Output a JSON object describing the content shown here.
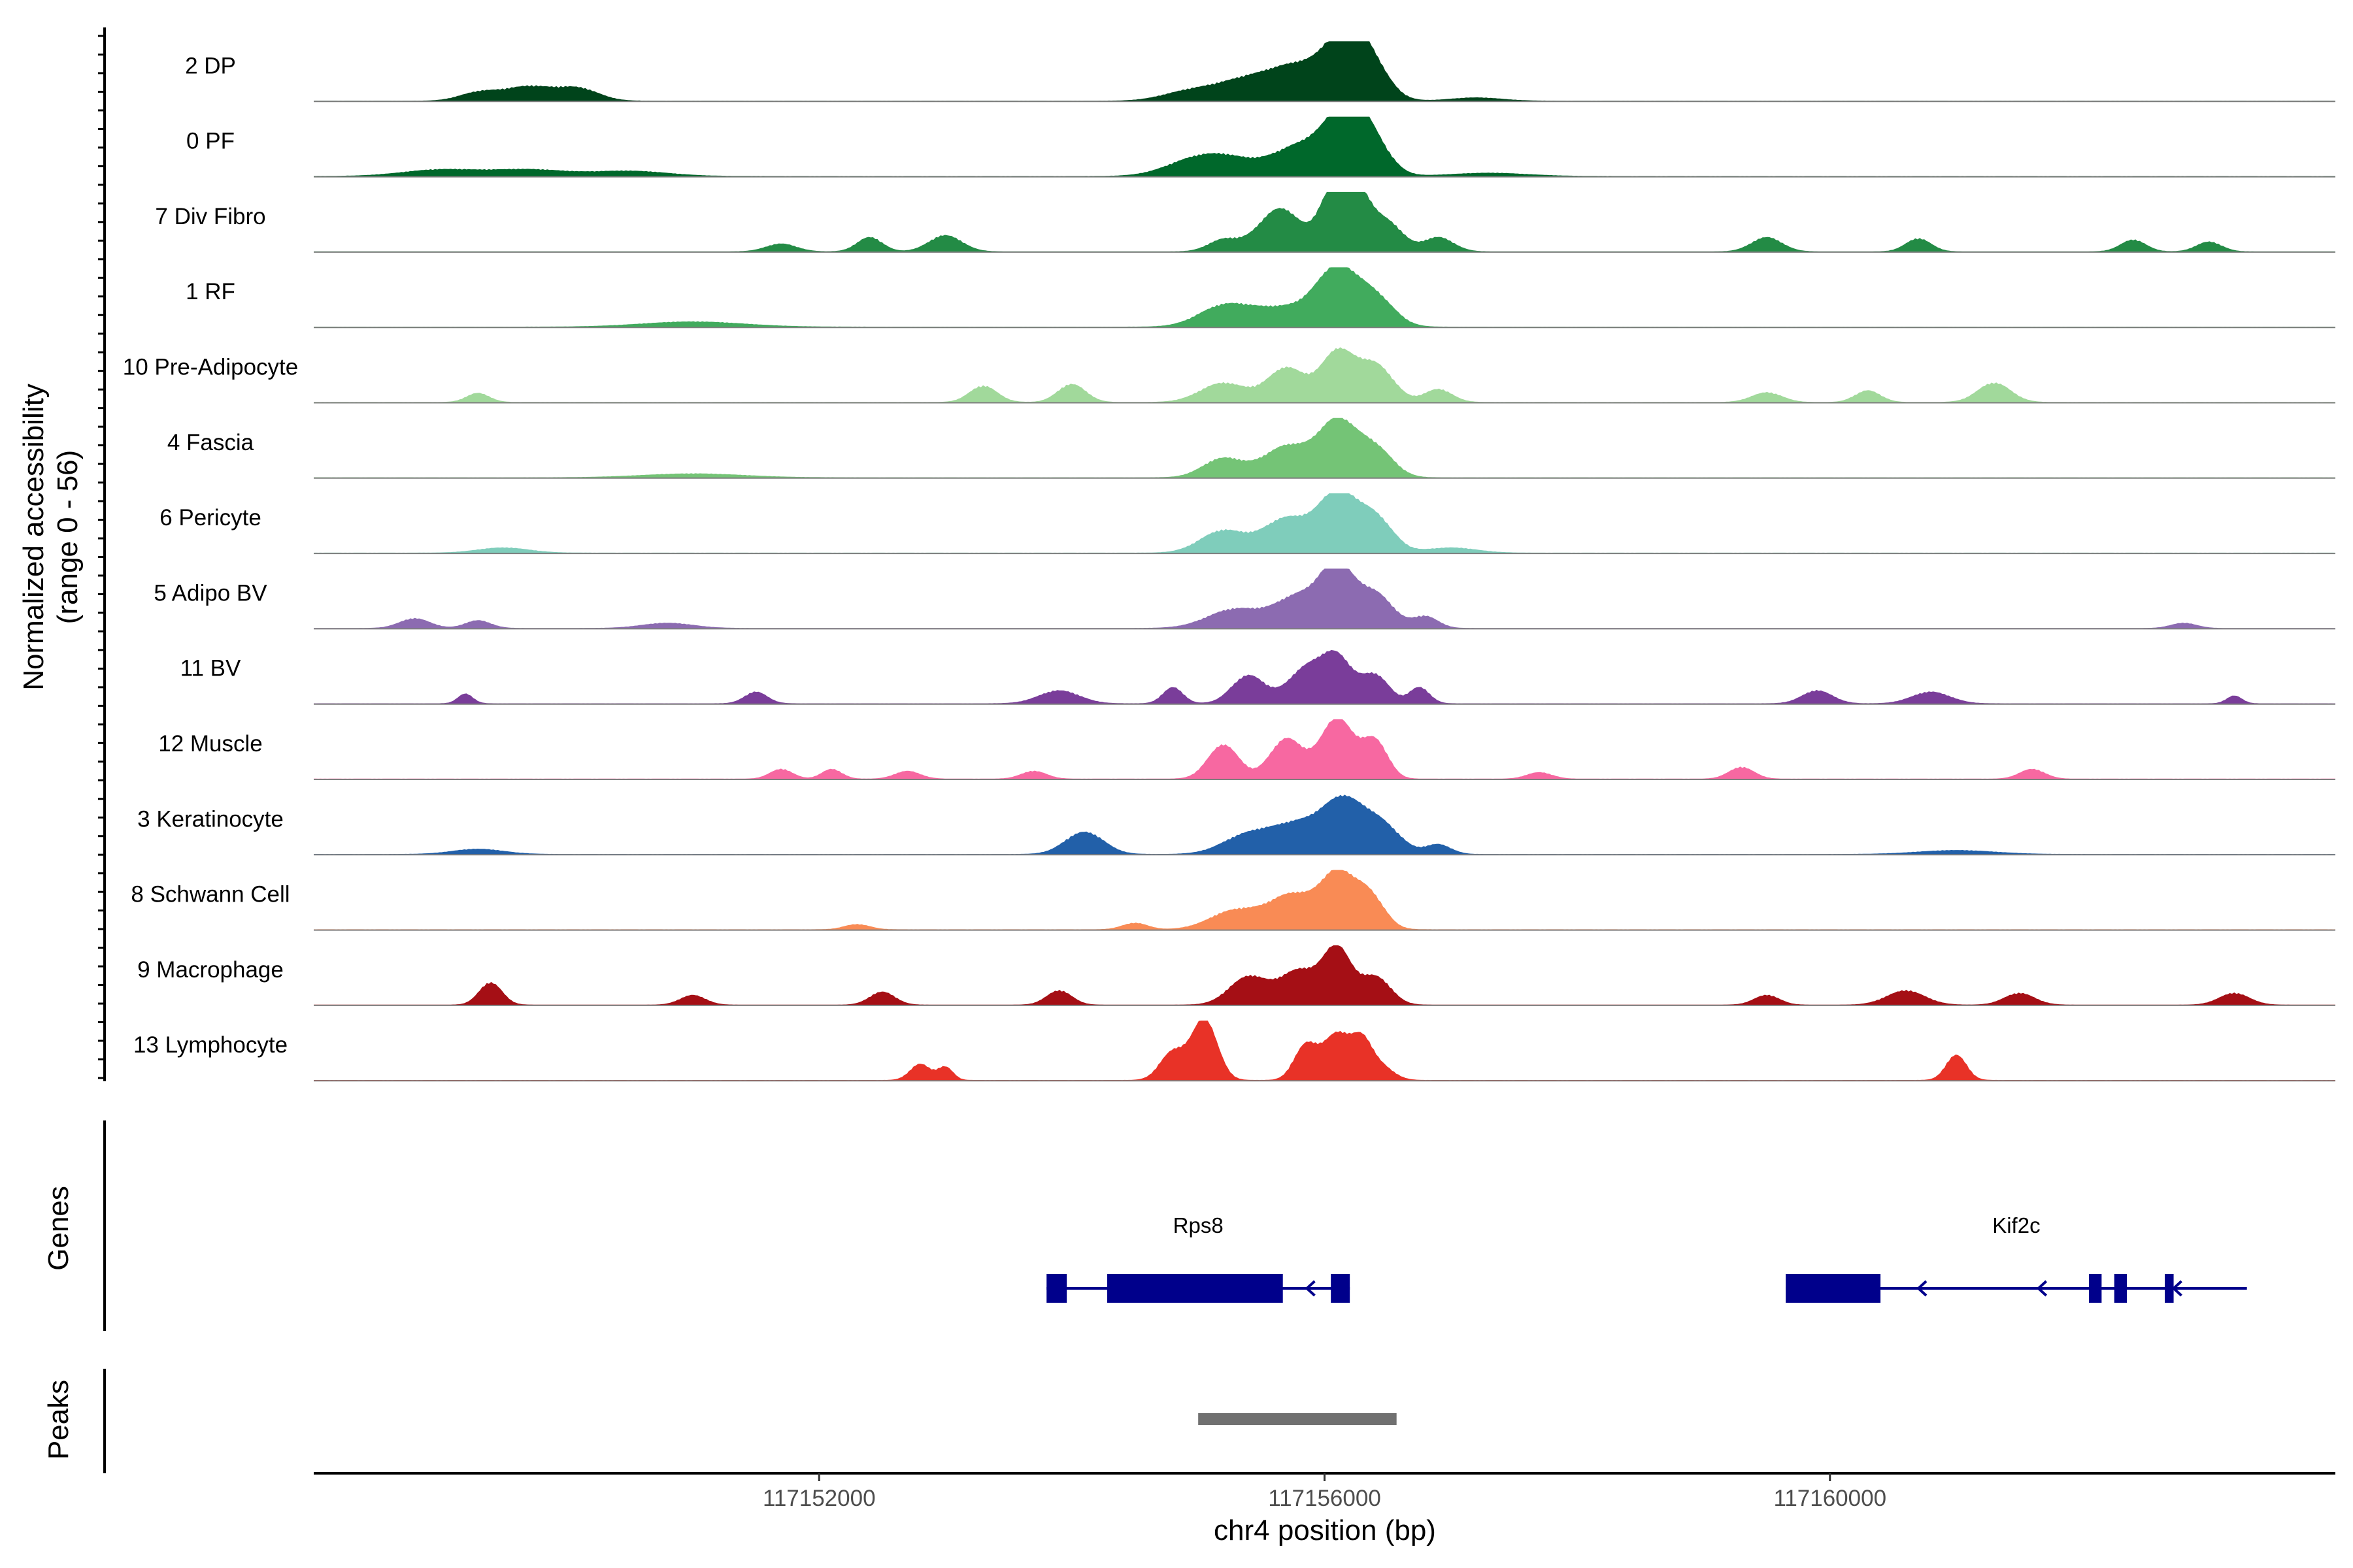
{
  "chart_data": {
    "type": "area",
    "chromosome": "chr4",
    "xlabel": "chr4 position (bp)",
    "ylabel": [
      "Normalized accessibility",
      "(range 0 - 56)"
    ],
    "y_range": [
      0,
      56
    ],
    "xlim": [
      117148000,
      117164000
    ],
    "x_ticks": [
      117152000,
      117156000,
      117160000
    ],
    "x_tick_labels": [
      "117152000",
      "117156000",
      "117160000"
    ],
    "tracks": [
      {
        "name": "2 DP",
        "color": "#00441b",
        "peaks": [
          [
            117149300,
            0.12,
            150
          ],
          [
            117149700,
            0.22,
            200
          ],
          [
            117150100,
            0.18,
            160
          ],
          [
            117155400,
            0.35,
            260
          ],
          [
            117155800,
            0.45,
            200
          ],
          [
            117156150,
            0.92,
            160
          ],
          [
            117156350,
            0.55,
            150
          ],
          [
            117154900,
            0.12,
            200
          ],
          [
            117157200,
            0.05,
            200
          ]
        ]
      },
      {
        "name": "0 PF",
        "color": "#00682b",
        "peaks": [
          [
            117149000,
            0.1,
            300
          ],
          [
            117149700,
            0.1,
            300
          ],
          [
            117150500,
            0.08,
            300
          ],
          [
            117155200,
            0.3,
            260
          ],
          [
            117155800,
            0.45,
            200
          ],
          [
            117156150,
            0.92,
            160
          ],
          [
            117156350,
            0.55,
            150
          ],
          [
            117154900,
            0.12,
            220
          ],
          [
            117157300,
            0.05,
            300
          ]
        ]
      },
      {
        "name": "7 Div Fibro",
        "color": "#238b45",
        "peaks": [
          [
            117151700,
            0.12,
            120
          ],
          [
            117152400,
            0.22,
            100
          ],
          [
            117153000,
            0.25,
            130
          ],
          [
            117155200,
            0.18,
            120
          ],
          [
            117155650,
            0.7,
            170
          ],
          [
            117156050,
            0.85,
            100
          ],
          [
            117156250,
            1.0,
            110
          ],
          [
            117156500,
            0.45,
            120
          ],
          [
            117156900,
            0.22,
            120
          ],
          [
            117159500,
            0.22,
            120
          ],
          [
            117160700,
            0.2,
            100
          ],
          [
            117162400,
            0.18,
            100
          ],
          [
            117163000,
            0.15,
            100
          ]
        ]
      },
      {
        "name": "1 RF",
        "color": "#41ab5d",
        "peaks": [
          [
            117151000,
            0.08,
            400
          ],
          [
            117155200,
            0.3,
            200
          ],
          [
            117155700,
            0.3,
            280
          ],
          [
            117156100,
            0.85,
            160
          ],
          [
            117156400,
            0.45,
            150
          ]
        ]
      },
      {
        "name": "10 Pre-Adipocyte",
        "color": "#a1d99b",
        "peaks": [
          [
            117149300,
            0.14,
            90
          ],
          [
            117153300,
            0.25,
            110
          ],
          [
            117154000,
            0.28,
            110
          ],
          [
            117155200,
            0.3,
            180
          ],
          [
            117155700,
            0.55,
            150
          ],
          [
            117156100,
            0.8,
            130
          ],
          [
            117156400,
            0.6,
            140
          ],
          [
            117156900,
            0.2,
            110
          ],
          [
            117159500,
            0.15,
            120
          ],
          [
            117161300,
            0.3,
            130
          ],
          [
            117160300,
            0.18,
            100
          ]
        ]
      },
      {
        "name": "4 Fascia",
        "color": "#74c476",
        "peaks": [
          [
            117151000,
            0.06,
            400
          ],
          [
            117155200,
            0.3,
            160
          ],
          [
            117155700,
            0.5,
            180
          ],
          [
            117156100,
            0.9,
            150
          ],
          [
            117156400,
            0.45,
            140
          ]
        ]
      },
      {
        "name": "6 Pericyte",
        "color": "#7fcdbb",
        "peaks": [
          [
            117149500,
            0.08,
            200
          ],
          [
            117155200,
            0.35,
            180
          ],
          [
            117155700,
            0.55,
            180
          ],
          [
            117156100,
            0.95,
            150
          ],
          [
            117156400,
            0.55,
            140
          ],
          [
            117157000,
            0.08,
            200
          ]
        ]
      },
      {
        "name": "5 Adipo BV",
        "color": "#8c6bb1",
        "peaks": [
          [
            117148800,
            0.15,
            120
          ],
          [
            117149300,
            0.12,
            100
          ],
          [
            117155300,
            0.3,
            220
          ],
          [
            117155800,
            0.5,
            180
          ],
          [
            117156100,
            0.95,
            130
          ],
          [
            117156400,
            0.55,
            140
          ],
          [
            117156800,
            0.18,
            100
          ],
          [
            117150800,
            0.08,
            200
          ],
          [
            117162800,
            0.08,
            100
          ]
        ]
      },
      {
        "name": "11 BV",
        "color": "#7a3d9a",
        "peaks": [
          [
            117149200,
            0.15,
            60
          ],
          [
            117151500,
            0.18,
            90
          ],
          [
            117153900,
            0.2,
            160
          ],
          [
            117154800,
            0.25,
            80
          ],
          [
            117155400,
            0.45,
            130
          ],
          [
            117155850,
            0.55,
            140
          ],
          [
            117156100,
            0.72,
            120
          ],
          [
            117156400,
            0.45,
            110
          ],
          [
            117156750,
            0.25,
            80
          ],
          [
            117159900,
            0.2,
            120
          ],
          [
            117160800,
            0.18,
            150
          ],
          [
            117163200,
            0.12,
            60
          ]
        ]
      },
      {
        "name": "12 Muscle",
        "color": "#f768a1",
        "peaks": [
          [
            117155200,
            0.55,
            120
          ],
          [
            117155700,
            0.65,
            130
          ],
          [
            117156100,
            1.0,
            130
          ],
          [
            117156400,
            0.6,
            100
          ],
          [
            117151700,
            0.15,
            90
          ],
          [
            117152100,
            0.15,
            80
          ],
          [
            117152700,
            0.12,
            100
          ],
          [
            117153700,
            0.12,
            100
          ],
          [
            117157700,
            0.1,
            100
          ],
          [
            117159300,
            0.18,
            100
          ],
          [
            117161600,
            0.15,
            100
          ]
        ]
      },
      {
        "name": "3 Keratinocyte",
        "color": "#2260a9",
        "peaks": [
          [
            117154100,
            0.35,
            150
          ],
          [
            117155400,
            0.3,
            200
          ],
          [
            117155800,
            0.45,
            200
          ],
          [
            117156150,
            0.8,
            160
          ],
          [
            117156450,
            0.45,
            150
          ],
          [
            117156900,
            0.15,
            100
          ],
          [
            117149300,
            0.08,
            200
          ],
          [
            117161000,
            0.06,
            300
          ]
        ]
      },
      {
        "name": "8 Schwann Cell",
        "color": "#f98b55",
        "peaks": [
          [
            117155300,
            0.3,
            200
          ],
          [
            117155750,
            0.55,
            180
          ],
          [
            117156100,
            0.85,
            130
          ],
          [
            117156350,
            0.55,
            120
          ],
          [
            117152300,
            0.08,
            100
          ],
          [
            117154500,
            0.1,
            100
          ]
        ]
      },
      {
        "name": "9 Macrophage",
        "color": "#a50f15",
        "peaks": [
          [
            117149400,
            0.35,
            90
          ],
          [
            117151000,
            0.15,
            100
          ],
          [
            117152500,
            0.2,
            100
          ],
          [
            117153900,
            0.22,
            100
          ],
          [
            117155400,
            0.45,
            150
          ],
          [
            117155800,
            0.55,
            150
          ],
          [
            117156100,
            0.9,
            110
          ],
          [
            117156400,
            0.45,
            120
          ],
          [
            117159500,
            0.15,
            100
          ],
          [
            117160600,
            0.22,
            150
          ],
          [
            117161500,
            0.18,
            120
          ],
          [
            117163200,
            0.18,
            120
          ]
        ]
      },
      {
        "name": "13 Lymphocyte",
        "color": "#e83227",
        "peaks": [
          [
            117152800,
            0.25,
            80
          ],
          [
            117153000,
            0.2,
            60
          ],
          [
            117154800,
            0.45,
            100
          ],
          [
            117155050,
            1.0,
            100
          ],
          [
            117155850,
            0.55,
            90
          ],
          [
            117156100,
            0.75,
            110
          ],
          [
            117156300,
            0.55,
            80
          ],
          [
            117156450,
            0.2,
            100
          ],
          [
            117161000,
            0.4,
            80
          ]
        ]
      }
    ],
    "genes": [
      {
        "name": "Rps8",
        "start": 117153800,
        "end": 117156200,
        "strand": "-",
        "exons": [
          [
            117153800,
            117153960
          ],
          [
            117154280,
            117155670
          ],
          [
            117156050,
            117156200
          ]
        ],
        "arrows": [
          117155860
        ]
      },
      {
        "name": "Kif2c",
        "start": 117159650,
        "end": 117163300,
        "strand": "-",
        "exons": [
          [
            117159650,
            117160400
          ],
          [
            117162050,
            117162150
          ],
          [
            117162250,
            117162350
          ],
          [
            117162650,
            117162720
          ]
        ],
        "arrows": [
          117160700,
          117161650,
          117162720
        ]
      }
    ],
    "gene_track_label": "Genes",
    "peak_track_label": "Peaks",
    "peaks": [
      {
        "start": 117155000,
        "end": 117156570
      }
    ]
  },
  "colors": {
    "gene": "#00008b",
    "peak": "#707070",
    "baseline": "#7f7f7f",
    "axis": "#000000"
  }
}
